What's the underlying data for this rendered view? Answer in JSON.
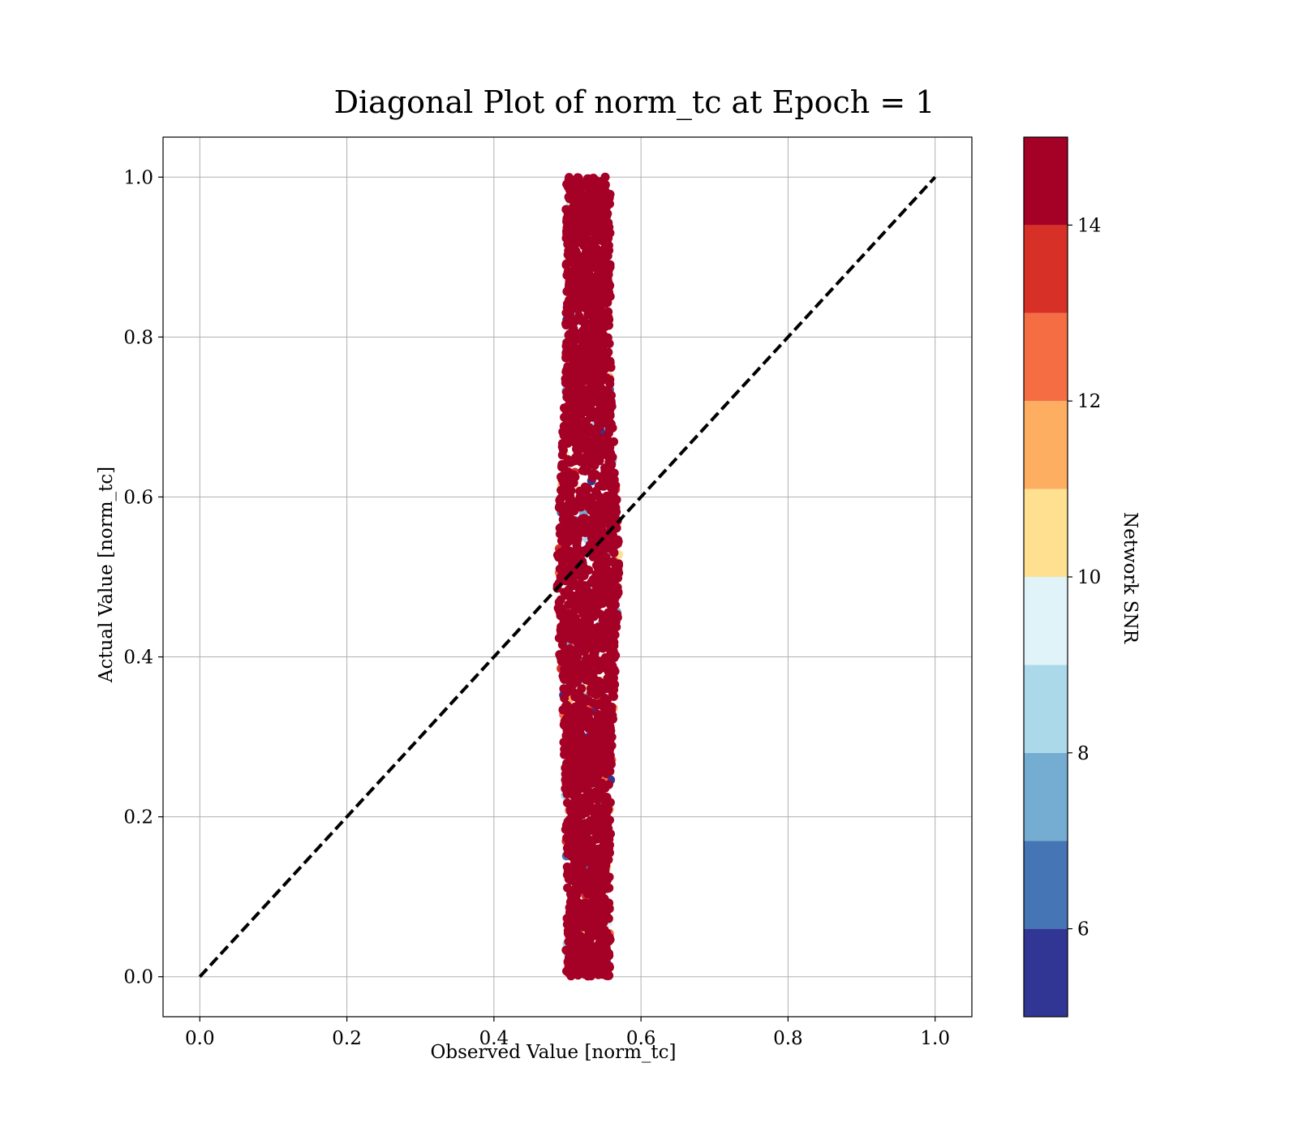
{
  "chart_data": {
    "type": "scatter",
    "title": "Diagonal Plot of norm_tc at Epoch = 1",
    "xlabel": "Observed Value [norm_tc]",
    "ylabel": "Actual Value [norm_tc]",
    "xlim": [
      -0.05,
      1.05
    ],
    "ylim": [
      -0.05,
      1.05
    ],
    "x_ticks": [
      0.0,
      0.2,
      0.4,
      0.6,
      0.8,
      1.0
    ],
    "y_ticks": [
      0.0,
      0.2,
      0.4,
      0.6,
      0.8,
      1.0
    ],
    "x_tick_labels": [
      "0.0",
      "0.2",
      "0.4",
      "0.6",
      "0.8",
      "1.0"
    ],
    "y_tick_labels": [
      "0.0",
      "0.2",
      "0.4",
      "0.6",
      "0.8",
      "1.0"
    ],
    "grid": true,
    "reference_line": {
      "x": [
        0.0,
        1.0
      ],
      "y": [
        0.0,
        1.0
      ],
      "style": "dashed",
      "color": "#000000"
    },
    "point_cloud": {
      "description_x_range": [
        0.49,
        0.58
      ],
      "description_y_range": [
        0.0,
        1.0
      ],
      "x_center": 0.528,
      "count_estimate": 3000,
      "dominant_snr": 15
    },
    "colorbar": {
      "label": "Network SNR",
      "range": [
        5,
        15
      ],
      "ticks": [
        6,
        8,
        10,
        12,
        14
      ],
      "tick_labels": [
        "6",
        "8",
        "10",
        "12",
        "14"
      ],
      "colors": [
        "#313695",
        "#4575b4",
        "#74add1",
        "#abd9e9",
        "#e0f3f8",
        "#fee090",
        "#fdae61",
        "#f46d43",
        "#d73027",
        "#a50026"
      ]
    }
  }
}
